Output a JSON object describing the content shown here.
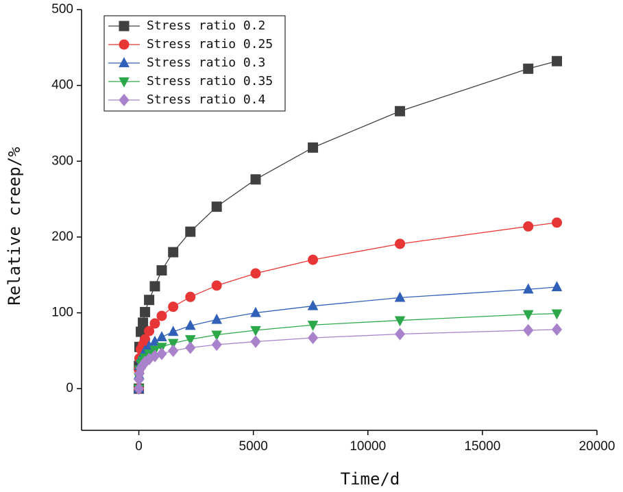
{
  "chart_data": {
    "type": "line",
    "xlabel": "Time/d",
    "ylabel": "Relative creep/%",
    "x": [
      0,
      7,
      28,
      90,
      180,
      270,
      450,
      700,
      1000,
      1500,
      2250,
      3400,
      5100,
      7600,
      11400,
      17000,
      18250
    ],
    "series": [
      {
        "name": "Stress ratio 0.2",
        "color": "#404040",
        "marker": "square",
        "values": [
          0,
          30,
          55,
          75,
          87,
          101,
          117,
          135,
          156,
          180,
          207,
          240,
          276,
          318,
          366,
          422,
          432
        ]
      },
      {
        "name": "Stress ratio 0.25",
        "color": "#e83535",
        "marker": "circle",
        "values": [
          0,
          25,
          40,
          52,
          58,
          65,
          76,
          86,
          96,
          108,
          121,
          136,
          152,
          170,
          191,
          214,
          219
        ]
      },
      {
        "name": "Stress ratio 0.3",
        "color": "#3060b8",
        "marker": "triangle-up",
        "values": [
          0,
          18,
          30,
          40,
          45,
          50,
          56,
          62,
          68,
          75,
          83,
          91,
          100,
          109,
          120,
          131,
          134
        ]
      },
      {
        "name": "Stress ratio 0.35",
        "color": "#2ca84a",
        "marker": "triangle-down",
        "values": [
          0,
          15,
          25,
          33,
          37,
          41,
          46,
          51,
          55,
          60,
          65,
          71,
          77,
          84,
          90,
          98,
          99
        ]
      },
      {
        "name": "Stress ratio 0.4",
        "color": "#a982cc",
        "marker": "diamond",
        "values": [
          0,
          12,
          20,
          27,
          31,
          35,
          39,
          43,
          46,
          50,
          54,
          58,
          62,
          67,
          72,
          77,
          78
        ]
      }
    ],
    "xlim": [
      -2500,
      20000
    ],
    "xticks": [
      0,
      5000,
      10000,
      15000,
      20000
    ],
    "ylim": [
      -55,
      500
    ],
    "yticks": [
      0,
      100,
      200,
      300,
      400,
      500
    ],
    "legend": "upper left"
  }
}
